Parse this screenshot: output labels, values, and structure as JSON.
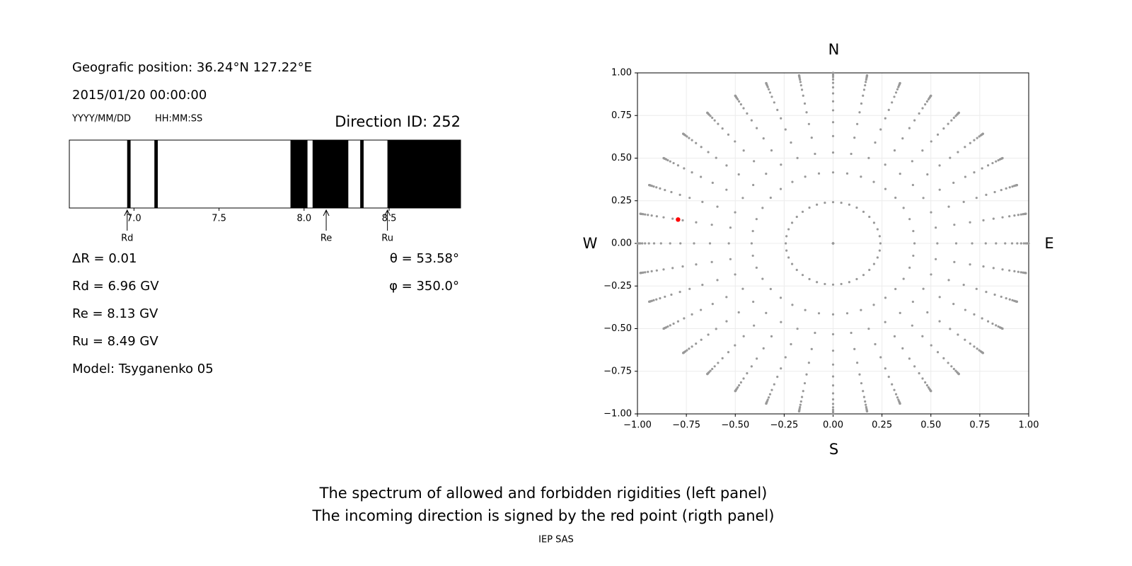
{
  "info": {
    "position": "Geografic position: 36.24°N 127.22°E",
    "datetime": "2015/01/20 00:00:00",
    "date_format": "YYYY/MM/DD",
    "time_format": "HH:MM:SS",
    "direction": "Direction ID: 252",
    "delta_r": "ΔR = 0.01",
    "rd": "Rd = 6.96 GV",
    "re": "Re = 8.13 GV",
    "ru": "Ru = 8.49 GV",
    "model": "Model: Tsyganenko 05",
    "theta": "θ = 53.58°",
    "phi": "φ = 350.0°",
    "caption": [
      "The spectrum of allowed and forbidden rigidities (left panel)",
      "The incoming direction is signed by the red point (rigth panel)"
    ],
    "credit": "IEP SAS"
  },
  "chart_data": [
    {
      "type": "spectrum",
      "xlim": [
        6.62,
        8.92
      ],
      "xticks": [
        {
          "value": 7,
          "label": "7.0"
        },
        {
          "value": 7.5,
          "label": "7.5"
        },
        {
          "value": 8,
          "label": "8.0"
        },
        {
          "value": 8.5,
          "label": "8.5"
        }
      ],
      "forbidden": [
        [
          6.96,
          6.98
        ],
        [
          7.12,
          7.14
        ],
        [
          7.92,
          8.02
        ],
        [
          8.05,
          8.26
        ],
        [
          8.33,
          8.35
        ],
        [
          8.49,
          8.92
        ]
      ],
      "color": "#000000",
      "markers": [
        {
          "name": "Rd",
          "value": 6.96
        },
        {
          "name": "Re",
          "value": 8.13
        },
        {
          "name": "Ru",
          "value": 8.49
        }
      ]
    },
    {
      "type": "polar-scatter",
      "xlim": [
        -1,
        1
      ],
      "ylim": [
        -1,
        1
      ],
      "xticks": [
        {
          "value": -1,
          "label": "−1.00"
        },
        {
          "value": -0.75,
          "label": "−0.75"
        },
        {
          "value": -0.5,
          "label": "−0.50"
        },
        {
          "value": -0.25,
          "label": "−0.25"
        },
        {
          "value": 0,
          "label": "0.00"
        },
        {
          "value": 0.25,
          "label": "0.25"
        },
        {
          "value": 0.5,
          "label": "0.50"
        },
        {
          "value": 0.75,
          "label": "0.75"
        },
        {
          "value": 1,
          "label": "1.00"
        }
      ],
      "yticks": [
        {
          "value": -1,
          "label": "−1.00"
        },
        {
          "value": -0.75,
          "label": "−0.75"
        },
        {
          "value": -0.5,
          "label": "−0.50"
        },
        {
          "value": -0.25,
          "label": "−0.25"
        },
        {
          "value": 0,
          "label": "0.00"
        },
        {
          "value": 0.25,
          "label": "0.25"
        },
        {
          "value": 0.5,
          "label": "0.50"
        },
        {
          "value": 0.75,
          "label": "0.75"
        },
        {
          "value": 1,
          "label": "1.00"
        }
      ],
      "grid": true,
      "zenith": [
        0,
        14,
        24.6,
        32.2,
        39,
        45.3,
        51.3,
        56.4,
        61.6,
        66.2,
        70.3,
        74,
        77.3,
        80.2,
        82.7,
        84.8,
        86.6,
        88,
        89.1,
        90
      ],
      "azimuth": [
        0,
        10,
        20,
        30,
        40,
        50,
        60,
        70,
        80,
        90,
        100,
        110,
        120,
        130,
        140,
        150,
        160,
        170,
        180,
        190,
        200,
        210,
        220,
        230,
        240,
        250,
        260,
        270,
        280,
        290,
        300,
        310,
        320,
        330,
        340,
        350
      ],
      "color": "#999999",
      "selected": {
        "zenith": 53.58,
        "azimuth": 350,
        "color": "#ff0000"
      },
      "directions": {
        "north": "N",
        "south": "S",
        "west": "W",
        "east": "E"
      }
    }
  ]
}
